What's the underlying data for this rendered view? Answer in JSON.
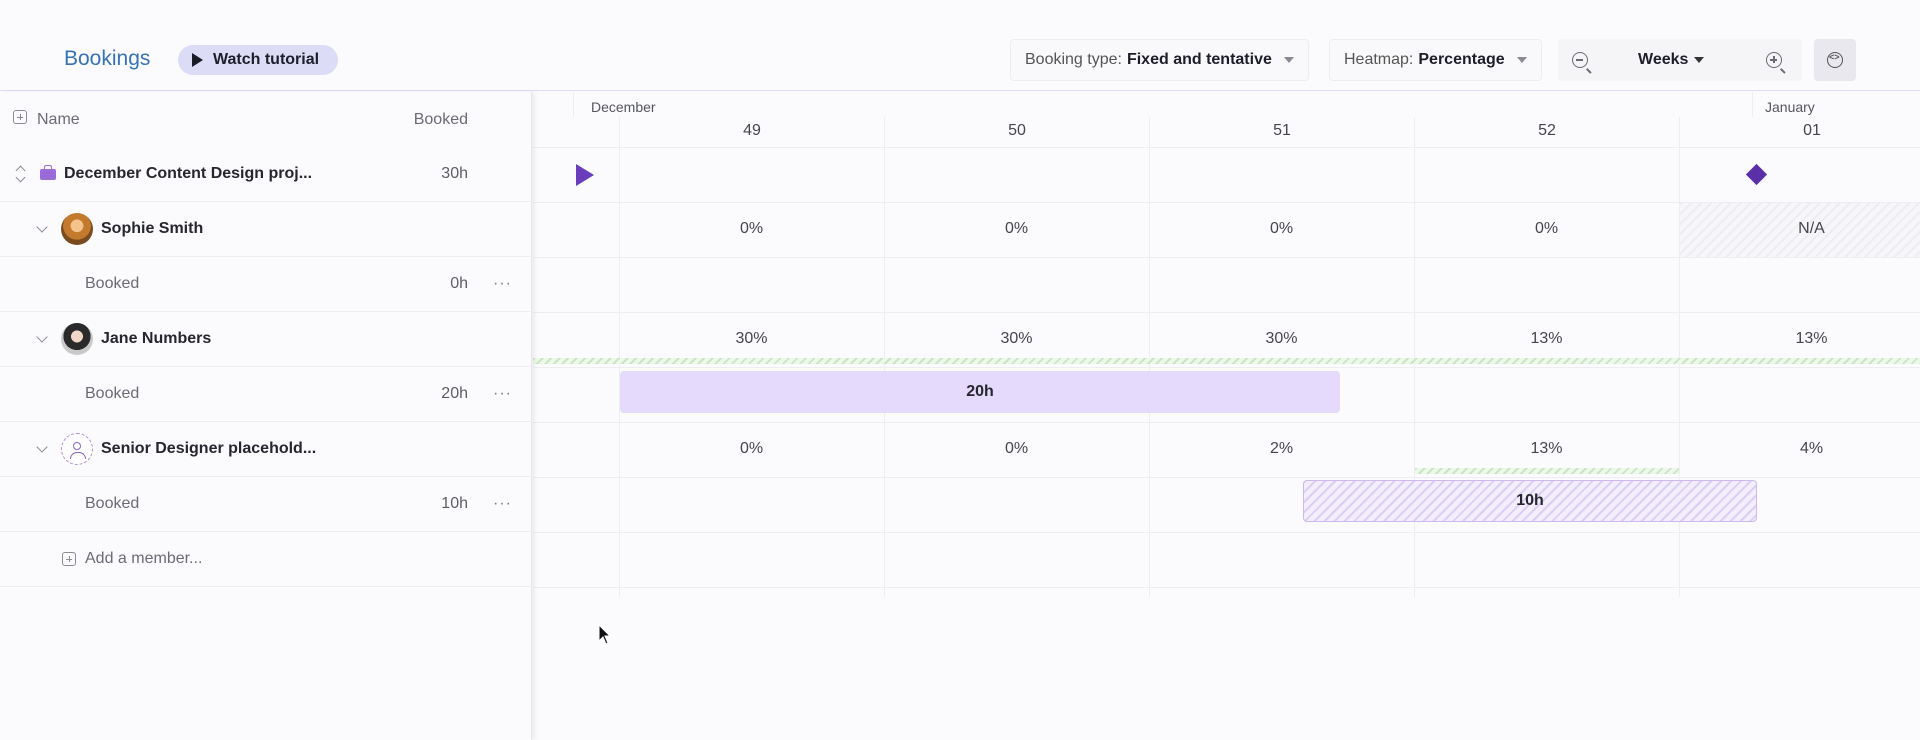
{
  "header": {
    "title": "Bookings",
    "tutorial_label": "Watch tutorial",
    "booking_type_label": "Booking type:",
    "booking_type_value": "Fixed and tentative",
    "heatmap_label": "Heatmap:",
    "heatmap_value": "Percentage",
    "scale_value": "Weeks"
  },
  "table": {
    "col_name": "Name",
    "col_booked": "Booked",
    "project": {
      "name": "December Content Design proj...",
      "hours": "30h"
    },
    "members": [
      {
        "name": "Sophie Smith",
        "sub_label": "Booked",
        "hours": "0h"
      },
      {
        "name": "Jane Numbers",
        "sub_label": "Booked",
        "hours": "20h"
      },
      {
        "name": "Senior Designer placehold...",
        "sub_label": "Booked",
        "hours": "10h"
      }
    ],
    "add_member": "Add a member..."
  },
  "timeline": {
    "months": [
      "December",
      "January"
    ],
    "weeks": [
      "49",
      "50",
      "51",
      "52",
      "01"
    ],
    "heatmap": {
      "sophie": [
        "0%",
        "0%",
        "0%",
        "0%",
        "N/A"
      ],
      "jane": [
        "30%",
        "30%",
        "30%",
        "13%",
        "13%"
      ],
      "placeholder": [
        "0%",
        "0%",
        "2%",
        "13%",
        "4%"
      ]
    },
    "bookings": {
      "jane_bar": "20h",
      "placeholder_bar": "10h"
    }
  }
}
